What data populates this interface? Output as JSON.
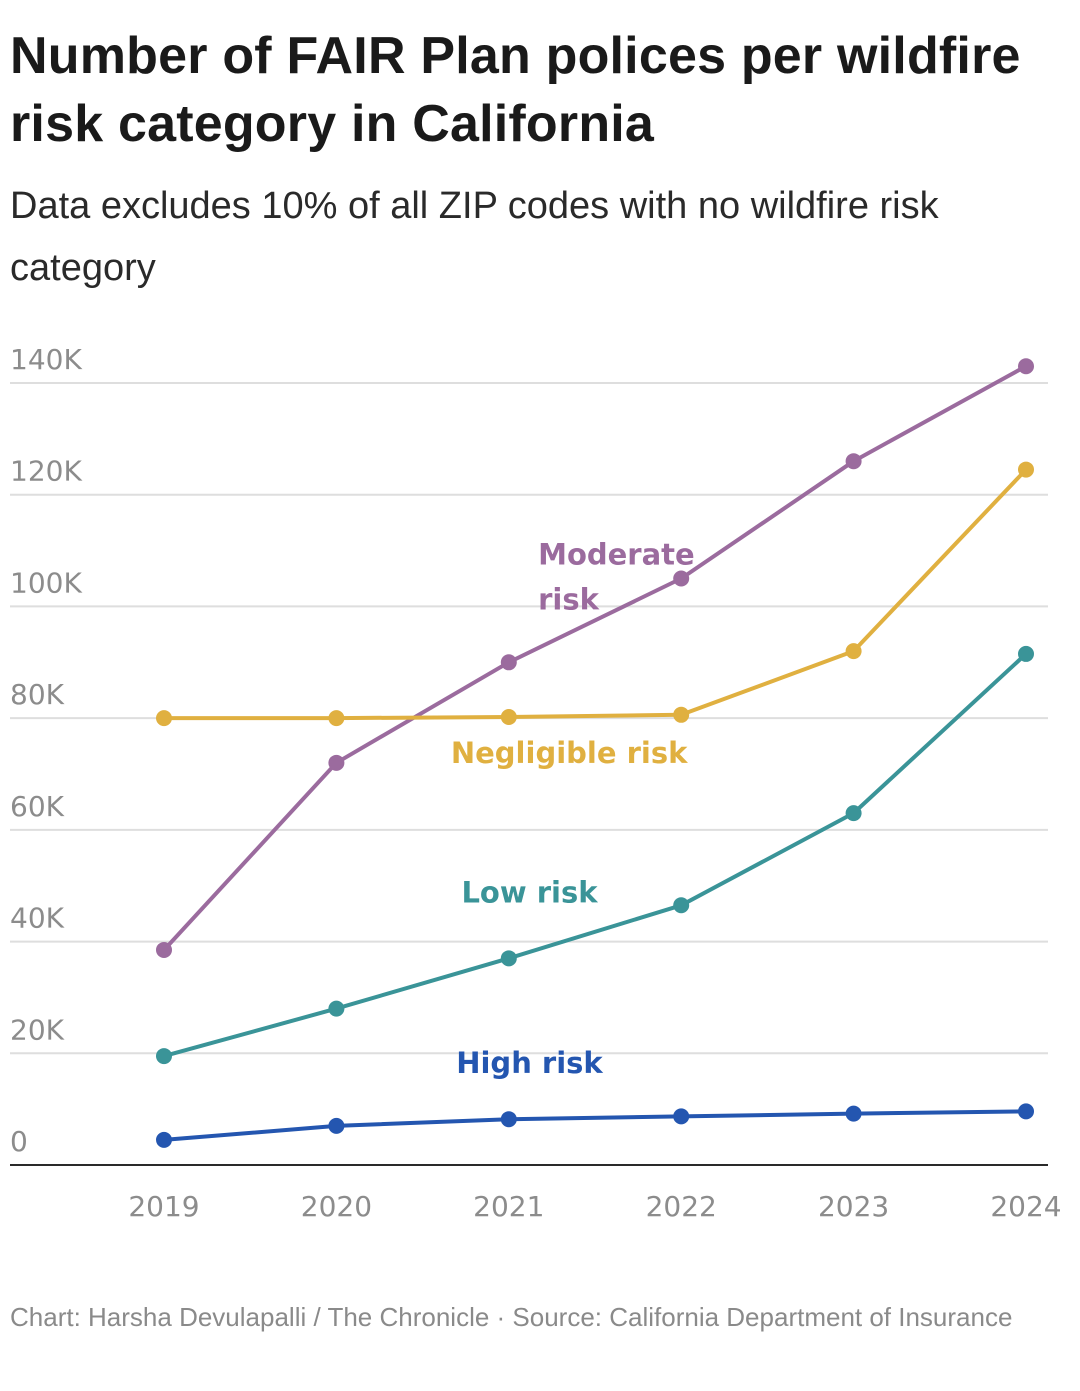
{
  "title": "Number of FAIR Plan polices per wildfire risk category in California",
  "subtitle": "Data excludes 10% of all ZIP codes with no wildfire risk category",
  "footer": "Chart: Harsha Devulapalli / The Chronicle · Source: California Department of Insurance",
  "chart_data": {
    "type": "line",
    "x": [
      "2019",
      "2020",
      "2021",
      "2022",
      "2023",
      "2024"
    ],
    "ylim": [
      0,
      140000
    ],
    "y_ticks": [
      0,
      20000,
      40000,
      60000,
      80000,
      100000,
      120000,
      140000
    ],
    "y_tick_labels": [
      "0",
      "20K",
      "40K",
      "60K",
      "80K",
      "100K",
      "120K",
      "140K"
    ],
    "grid": true,
    "series": [
      {
        "name": "Moderate risk",
        "label_lines": [
          "Moderate",
          "risk"
        ],
        "color": "#9b6b9e",
        "values": [
          38500,
          72000,
          90000,
          105000,
          126000,
          143000
        ]
      },
      {
        "name": "Negligible risk",
        "label_lines": [
          "Negligible risk"
        ],
        "color": "#e0b040",
        "values": [
          80000,
          80000,
          80200,
          80600,
          92000,
          124500
        ]
      },
      {
        "name": "Low risk",
        "label_lines": [
          "Low risk"
        ],
        "color": "#3a9498",
        "values": [
          19500,
          28000,
          37000,
          46500,
          63000,
          91500
        ]
      },
      {
        "name": "High risk",
        "label_lines": [
          "High risk"
        ],
        "color": "#2456b0",
        "values": [
          4500,
          7000,
          8200,
          8700,
          9200,
          9600
        ]
      }
    ]
  }
}
